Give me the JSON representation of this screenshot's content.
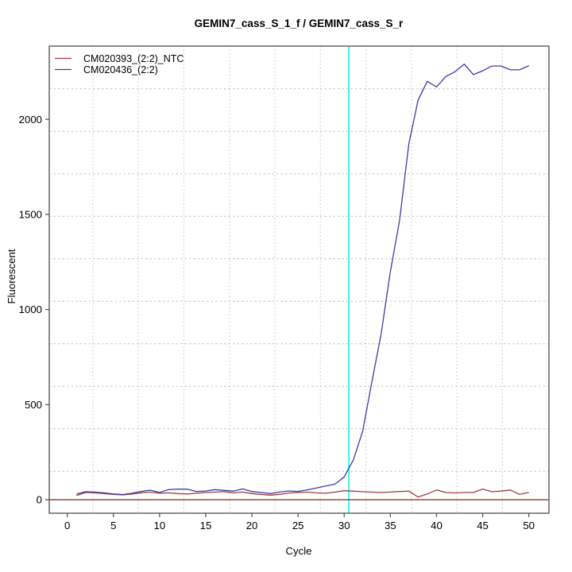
{
  "title": "GEMIN7_cass_S_1_f / GEMIN7_cass_S_r",
  "colors": {
    "ntc_series": "#A23C3C",
    "sample_series": "#3C3CA8",
    "threshold_line": "#8B2222",
    "crossing_vline": "#00EEEE",
    "grid": "#C4C4C4",
    "box": "#4D4D4D",
    "text": "#000000",
    "background": "#FFFFFF"
  },
  "chart_data": {
    "type": "line",
    "title": "GEMIN7_cass_S_1_f / GEMIN7_cass_S_r",
    "xlabel": "Cycle",
    "ylabel": "Fluorescent",
    "x": [
      1,
      2,
      3,
      4,
      5,
      6,
      7,
      8,
      9,
      10,
      11,
      12,
      13,
      14,
      15,
      16,
      17,
      18,
      19,
      20,
      21,
      22,
      23,
      24,
      25,
      26,
      27,
      28,
      29,
      30,
      31,
      32,
      33,
      34,
      35,
      36,
      37,
      38,
      39,
      40,
      41,
      42,
      43,
      44,
      45,
      46,
      47,
      48,
      49,
      50
    ],
    "series": [
      {
        "name": "CM020393_(2:2)_NTC",
        "color": "#A23C3C",
        "values": [
          22,
          38,
          36,
          32,
          28,
          25,
          30,
          36,
          40,
          34,
          36,
          32,
          30,
          34,
          38,
          40,
          42,
          36,
          40,
          32,
          28,
          24,
          28,
          35,
          38,
          40,
          36,
          34,
          40,
          47,
          45,
          42,
          40,
          38,
          40,
          43,
          45,
          14,
          30,
          51,
          38,
          36,
          38,
          38,
          56,
          42,
          45,
          51,
          28,
          38
        ]
      },
      {
        "name": "CM020436_(2:2)",
        "color": "#3C3CA8",
        "values": [
          30,
          42,
          40,
          36,
          30,
          27,
          34,
          43,
          50,
          38,
          53,
          56,
          55,
          43,
          46,
          53,
          49,
          45,
          57,
          43,
          38,
          32,
          40,
          46,
          43,
          52,
          62,
          72,
          82,
          120,
          210,
          360,
          620,
          870,
          1200,
          1470,
          1870,
          2100,
          2200,
          2170,
          2225,
          2250,
          2290,
          2235,
          2255,
          2280,
          2280,
          2260,
          2260,
          2282
        ]
      }
    ],
    "x_ticks": [
      0,
      5,
      10,
      15,
      20,
      25,
      30,
      35,
      40,
      45,
      50
    ],
    "y_ticks": [
      0,
      500,
      1000,
      1500,
      2000
    ],
    "xlim": [
      -1.95,
      52.18
    ],
    "ylim": [
      -71,
      2385
    ],
    "grid": "dotted light-gray grid, evenly spaced, not aligned to ticks",
    "threshold_line_y": 0,
    "crossing_vline_x": 30.5,
    "legend_position": "top-left"
  }
}
